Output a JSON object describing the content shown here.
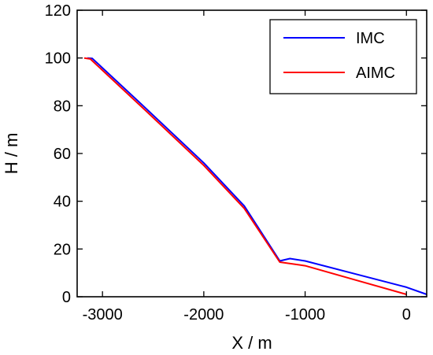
{
  "chart_data": {
    "type": "line",
    "xlabel": "X / m",
    "ylabel": "H / m",
    "xlim": [
      -3250,
      200
    ],
    "ylim": [
      0,
      120
    ],
    "xticks": [
      -3000,
      -2000,
      -1000,
      0
    ],
    "yticks": [
      0,
      20,
      40,
      60,
      80,
      100,
      120
    ],
    "grid": false,
    "legend_position": "top-right",
    "series": [
      {
        "name": "IMC",
        "color": "#0000ff",
        "x": [
          -3150,
          -3100,
          -2600,
          -2000,
          -1600,
          -1250,
          -1200,
          -1150,
          -1000,
          -500,
          0,
          200
        ],
        "y": [
          100,
          99.8,
          80,
          56,
          38,
          15,
          15.5,
          16,
          15,
          9.5,
          4,
          1
        ]
      },
      {
        "name": "AIMC",
        "color": "#ff0000",
        "x": [
          -3180,
          -3120,
          -2600,
          -2000,
          -1600,
          -1250,
          -1000,
          -500,
          0
        ],
        "y": [
          100,
          99.6,
          79,
          55,
          37,
          14.5,
          13,
          7,
          1
        ]
      }
    ]
  }
}
